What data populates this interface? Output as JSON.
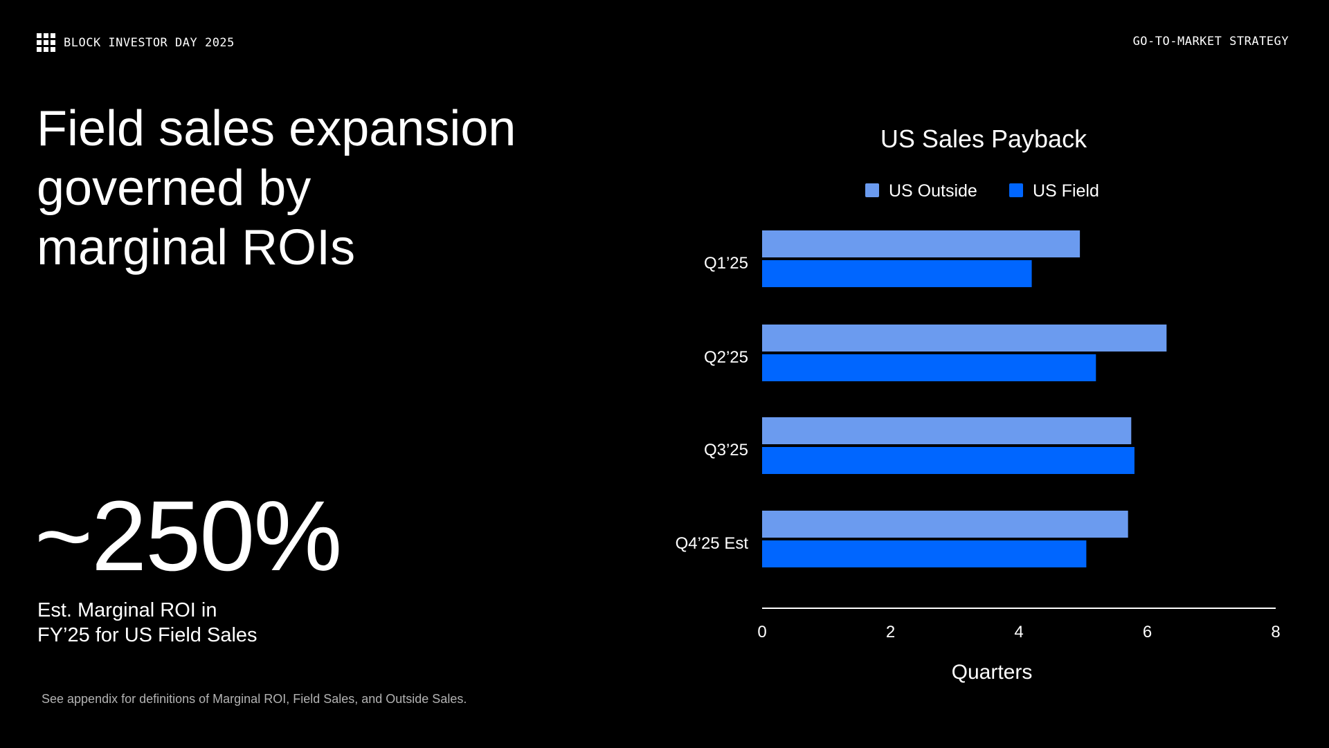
{
  "header": {
    "brand": "BLOCK INVESTOR DAY 2025",
    "section": "GO-TO-MARKET STRATEGY"
  },
  "headline": {
    "line1": "Field sales expansion",
    "line2": "governed by",
    "line3": "marginal ROIs"
  },
  "stat": {
    "value": "~250%",
    "caption_line1": "Est. Marginal ROI in",
    "caption_line2": "FY’25 for US Field Sales"
  },
  "footnote": "See appendix for definitions of Marginal ROI, Field Sales, and Outside Sales.",
  "colors": {
    "background": "#000000",
    "us_outside": "#6b9bef",
    "us_field": "#0066ff",
    "text": "#ffffff"
  },
  "chart_data": {
    "type": "bar",
    "orientation": "horizontal",
    "title": "US Sales Payback",
    "xlabel": "Quarters",
    "ylabel": "",
    "xlim": [
      0,
      8
    ],
    "xticks": [
      0,
      2,
      4,
      6,
      8
    ],
    "categories": [
      "Q1’25",
      "Q2’25",
      "Q3’25",
      "Q4’25 Est"
    ],
    "series": [
      {
        "name": "US Outside",
        "color": "#6b9bef",
        "values": [
          4.95,
          6.3,
          5.75,
          5.7
        ]
      },
      {
        "name": "US Field",
        "color": "#0066ff",
        "values": [
          4.2,
          5.2,
          5.8,
          5.05
        ]
      }
    ],
    "legend": "top-center",
    "grid": false
  }
}
